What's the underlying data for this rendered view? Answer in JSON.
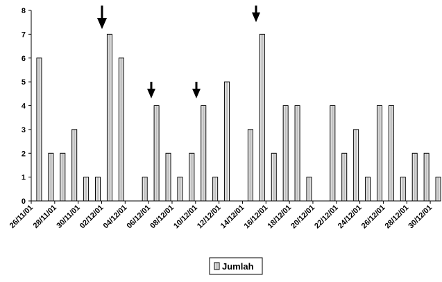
{
  "chart_data": {
    "type": "bar",
    "categories": [
      "26/11/01",
      null,
      "28/11/01",
      null,
      "30/11/01",
      null,
      "02/12/01",
      null,
      "04/12/01",
      null,
      "06/12/01",
      null,
      "08/12/01",
      null,
      "10/12/01",
      null,
      "12/12/01",
      null,
      "14/12/01",
      null,
      "16/12/01",
      null,
      "18/12/01",
      null,
      "20/12/01",
      null,
      "22/12/01",
      null,
      "24/12/01",
      null,
      "26/12/01",
      null,
      "28/12/01",
      null,
      "30/12/01"
    ],
    "series": [
      {
        "name": "Jumlah",
        "color": "#c0c0c0",
        "values": [
          6,
          2,
          2,
          3,
          1,
          1,
          7,
          6,
          0,
          1,
          4,
          2,
          1,
          2,
          4,
          1,
          5,
          0,
          3,
          7,
          2,
          4,
          4,
          1,
          0,
          4,
          2,
          3,
          1,
          4,
          4,
          1,
          2,
          2,
          1
        ]
      }
    ],
    "ylim": [
      0,
      8
    ],
    "yticks": [
      0,
      1,
      2,
      3,
      4,
      5,
      6,
      7,
      8
    ],
    "grid": false,
    "legend": "bottom"
  }
}
